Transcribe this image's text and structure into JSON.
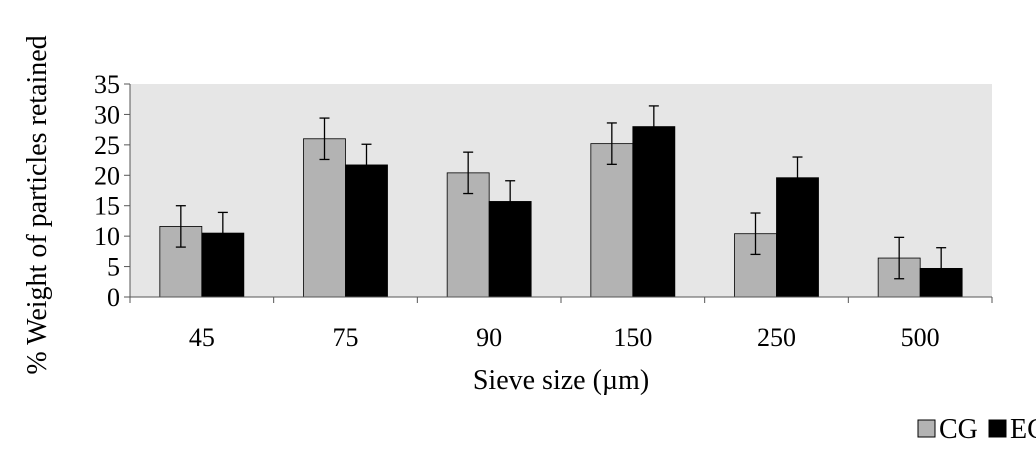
{
  "chart_data": {
    "type": "bar",
    "xlabel": "Sieve size (µm)",
    "ylabel": "% Weight of particles retained",
    "categories": [
      "45",
      "75",
      "90",
      "150",
      "250",
      "500"
    ],
    "series": [
      {
        "name": "CG",
        "color": "#b3b3b3",
        "values": [
          11.6,
          26.0,
          20.4,
          25.2,
          10.4,
          6.4
        ],
        "errors": [
          3.4,
          3.4,
          3.4,
          3.4,
          3.4,
          3.4
        ]
      },
      {
        "name": "EG",
        "color": "#000000",
        "values": [
          10.5,
          21.7,
          15.7,
          28.0,
          19.6,
          4.7
        ],
        "errors": [
          3.4,
          3.4,
          3.4,
          3.4,
          3.4,
          3.4
        ]
      }
    ],
    "ylim": [
      0,
      35
    ],
    "yticks": [
      0,
      5,
      10,
      15,
      20,
      25,
      30,
      35
    ],
    "grid": false,
    "plot_background": "#e6e6e6",
    "legend_position": "bottom-right"
  }
}
